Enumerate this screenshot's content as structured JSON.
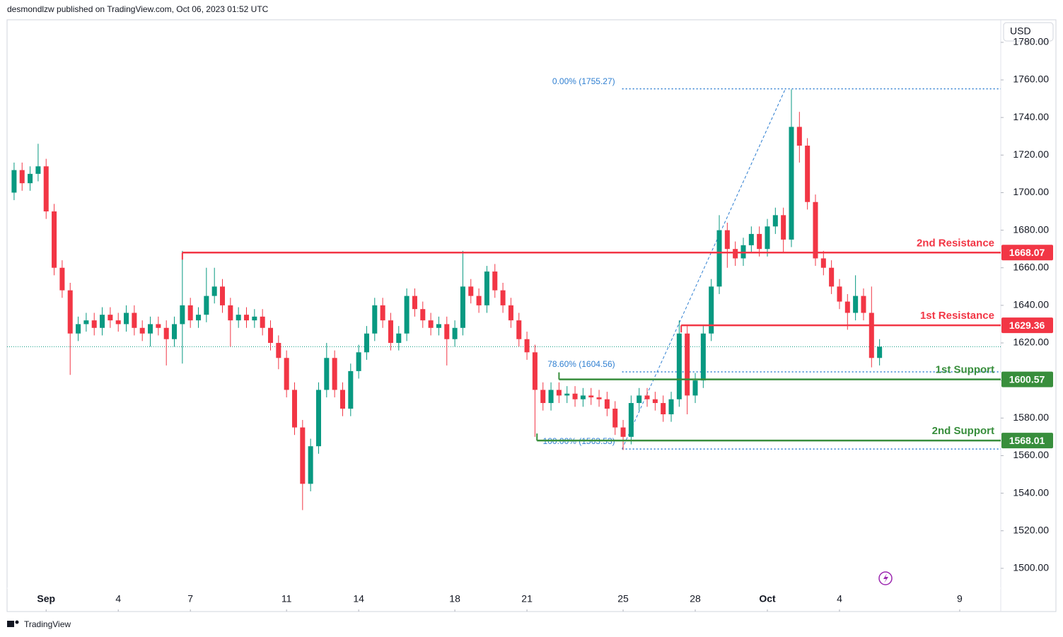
{
  "header": "desmondlzw published on TradingView.com, Oct 06, 2023 01:52 UTC",
  "currency": "USD",
  "footer": "TradingView",
  "chart_data": {
    "type": "candlestick",
    "up_color": "#089981",
    "down_color": "#f23645",
    "xlim": [
      -39,
      953
    ],
    "ylim": [
      1477,
      1792
    ],
    "xticks": [
      {
        "value": 0,
        "label": "Sep"
      },
      {
        "value": 72,
        "label": "4"
      },
      {
        "value": 144,
        "label": "7"
      },
      {
        "value": 240,
        "label": "11"
      },
      {
        "value": 312,
        "label": "14"
      },
      {
        "value": 408,
        "label": "18"
      },
      {
        "value": 480,
        "label": "21"
      },
      {
        "value": 576,
        "label": "25"
      },
      {
        "value": 648,
        "label": "28"
      },
      {
        "value": 720,
        "label": "Oct"
      },
      {
        "value": 792,
        "label": "4"
      },
      {
        "value": 912,
        "label": "9"
      }
    ],
    "yticks": [
      {
        "value": 1500,
        "label": "1500.00"
      },
      {
        "value": 1520,
        "label": "1520.00"
      },
      {
        "value": 1540,
        "label": "1540.00"
      },
      {
        "value": 1560,
        "label": "1560.00"
      },
      {
        "value": 1580,
        "label": "1580.00"
      },
      {
        "value": 1600,
        "label": "1600.00"
      },
      {
        "value": 1620,
        "label": "1620.00"
      },
      {
        "value": 1640,
        "label": "1640.00"
      },
      {
        "value": 1660,
        "label": "1660.00"
      },
      {
        "value": 1680,
        "label": "1680.00"
      },
      {
        "value": 1700,
        "label": "1700.00"
      },
      {
        "value": 1720,
        "label": "1720.00"
      },
      {
        "value": 1740,
        "label": "1740.00"
      },
      {
        "value": 1760,
        "label": "1760.00"
      },
      {
        "value": 1780,
        "label": "1780.00"
      }
    ],
    "x": [
      -32,
      -24,
      -16,
      -8,
      0,
      8,
      16,
      24,
      32,
      40,
      48,
      56,
      64,
      72,
      80,
      88,
      96,
      104,
      112,
      120,
      128,
      136,
      144,
      152,
      160,
      168,
      176,
      184,
      192,
      200,
      208,
      216,
      224,
      232,
      240,
      248,
      256,
      264,
      272,
      280,
      288,
      296,
      304,
      312,
      320,
      328,
      336,
      344,
      352,
      360,
      368,
      376,
      384,
      392,
      400,
      408,
      416,
      424,
      432,
      440,
      448,
      456,
      464,
      472,
      480,
      488,
      496,
      504,
      512,
      520,
      528,
      536,
      544,
      552,
      560,
      568,
      576,
      584,
      592,
      600,
      608,
      616,
      624,
      632,
      640,
      648,
      656,
      664,
      672,
      680,
      688,
      696,
      704,
      712,
      720,
      728,
      736,
      744,
      752,
      760,
      768,
      776,
      784,
      792,
      800,
      808,
      816,
      824,
      832
    ],
    "open": [
      1700,
      1712,
      1705,
      1710,
      1714,
      1690,
      1660,
      1648,
      1625,
      1630,
      1632,
      1628,
      1635,
      1632,
      1630,
      1636,
      1628,
      1625,
      1630,
      1628,
      1622,
      1630,
      1640,
      1632,
      1635,
      1645,
      1650,
      1640,
      1632,
      1635,
      1632,
      1634,
      1628,
      1620,
      1612,
      1595,
      1575,
      1545,
      1565,
      1595,
      1612,
      1595,
      1585,
      1605,
      1615,
      1625,
      1640,
      1632,
      1620,
      1625,
      1645,
      1638,
      1632,
      1628,
      1630,
      1622,
      1628,
      1650,
      1645,
      1640,
      1658,
      1648,
      1640,
      1632,
      1622,
      1615,
      1595,
      1588,
      1595,
      1592,
      1593,
      1590,
      1592,
      1591,
      1590,
      1585,
      1575,
      1570,
      1588,
      1592,
      1590,
      1588,
      1582,
      1590,
      1625,
      1592,
      1600,
      1625,
      1650,
      1680,
      1670,
      1665,
      1672,
      1678,
      1670,
      1682,
      1688,
      1675,
      1735,
      1725,
      1695,
      1665,
      1660,
      1650,
      1642,
      1636,
      1645,
      1636,
      1612
    ],
    "high": [
      1716,
      1716,
      1714,
      1726,
      1718,
      1694,
      1664,
      1652,
      1634,
      1636,
      1636,
      1639,
      1639,
      1636,
      1640,
      1640,
      1632,
      1634,
      1634,
      1632,
      1634,
      1669,
      1644,
      1639,
      1660,
      1660,
      1654,
      1644,
      1639,
      1639,
      1638,
      1638,
      1632,
      1624,
      1616,
      1599,
      1579,
      1569,
      1599,
      1620,
      1616,
      1599,
      1609,
      1619,
      1629,
      1644,
      1644,
      1636,
      1629,
      1649,
      1649,
      1642,
      1636,
      1634,
      1634,
      1632,
      1669,
      1654,
      1649,
      1661,
      1662,
      1652,
      1644,
      1636,
      1626,
      1619,
      1599,
      1599,
      1599,
      1597,
      1597,
      1596,
      1596,
      1595,
      1594,
      1589,
      1579,
      1592,
      1596,
      1596,
      1594,
      1592,
      1594,
      1632,
      1629,
      1604,
      1629,
      1654,
      1688,
      1684,
      1674,
      1676,
      1682,
      1682,
      1686,
      1692,
      1692,
      1755,
      1743,
      1729,
      1699,
      1669,
      1664,
      1654,
      1646,
      1656,
      1649,
      1650,
      1622
    ],
    "low": [
      1696,
      1701,
      1701,
      1706,
      1686,
      1656,
      1644,
      1603,
      1621,
      1626,
      1624,
      1624,
      1628,
      1626,
      1626,
      1624,
      1621,
      1618,
      1624,
      1608,
      1618,
      1609,
      1628,
      1628,
      1631,
      1641,
      1636,
      1618,
      1628,
      1628,
      1628,
      1624,
      1616,
      1606,
      1591,
      1571,
      1531,
      1541,
      1561,
      1591,
      1591,
      1581,
      1581,
      1601,
      1611,
      1621,
      1628,
      1616,
      1616,
      1621,
      1634,
      1628,
      1624,
      1624,
      1608,
      1618,
      1624,
      1641,
      1636,
      1636,
      1644,
      1636,
      1628,
      1618,
      1611,
      1570,
      1584,
      1584,
      1588,
      1588,
      1586,
      1586,
      1587,
      1586,
      1581,
      1571,
      1563,
      1566,
      1584,
      1586,
      1584,
      1578,
      1578,
      1586,
      1582,
      1588,
      1596,
      1621,
      1646,
      1660,
      1661,
      1661,
      1668,
      1666,
      1666,
      1678,
      1668,
      1671,
      1716,
      1691,
      1661,
      1656,
      1646,
      1638,
      1627,
      1632,
      1632,
      1607,
      1608
    ],
    "close": [
      1712,
      1705,
      1710,
      1714,
      1690,
      1660,
      1648,
      1625,
      1630,
      1632,
      1628,
      1635,
      1632,
      1630,
      1636,
      1628,
      1625,
      1630,
      1628,
      1622,
      1630,
      1640,
      1632,
      1635,
      1645,
      1650,
      1640,
      1632,
      1635,
      1632,
      1634,
      1628,
      1620,
      1612,
      1595,
      1575,
      1545,
      1565,
      1595,
      1612,
      1595,
      1585,
      1605,
      1615,
      1625,
      1640,
      1632,
      1620,
      1625,
      1645,
      1638,
      1632,
      1628,
      1630,
      1622,
      1628,
      1650,
      1645,
      1640,
      1658,
      1648,
      1640,
      1632,
      1622,
      1615,
      1595,
      1588,
      1595,
      1592,
      1593,
      1590,
      1592,
      1591,
      1590,
      1585,
      1575,
      1570,
      1588,
      1592,
      1590,
      1588,
      1582,
      1590,
      1625,
      1592,
      1600,
      1625,
      1650,
      1680,
      1670,
      1665,
      1672,
      1678,
      1670,
      1682,
      1688,
      1675,
      1735,
      1725,
      1695,
      1665,
      1660,
      1650,
      1642,
      1636,
      1645,
      1636,
      1612,
      1618
    ],
    "levels": [
      {
        "name": "2nd Resistance",
        "value": 1668.07,
        "start": 136,
        "color": "#f23645"
      },
      {
        "name": "1st Resistance",
        "value": 1629.36,
        "start": 634,
        "color": "#f23645"
      },
      {
        "name": "1st Support",
        "value": 1600.57,
        "start": 512,
        "color": "#388e3c"
      },
      {
        "name": "2nd Support",
        "value": 1568.01,
        "start": 490,
        "color": "#388e3c"
      }
    ],
    "fib": {
      "color": "#2f7fd1",
      "start": 575,
      "end": 738,
      "levels": [
        {
          "label": "0.00% (1755.27)",
          "value": 1755.27
        },
        {
          "label": "78.60% (1604.56)",
          "value": 1604.56
        },
        {
          "label": "100.00% (1563.53)",
          "value": 1563.53
        }
      ]
    }
  }
}
